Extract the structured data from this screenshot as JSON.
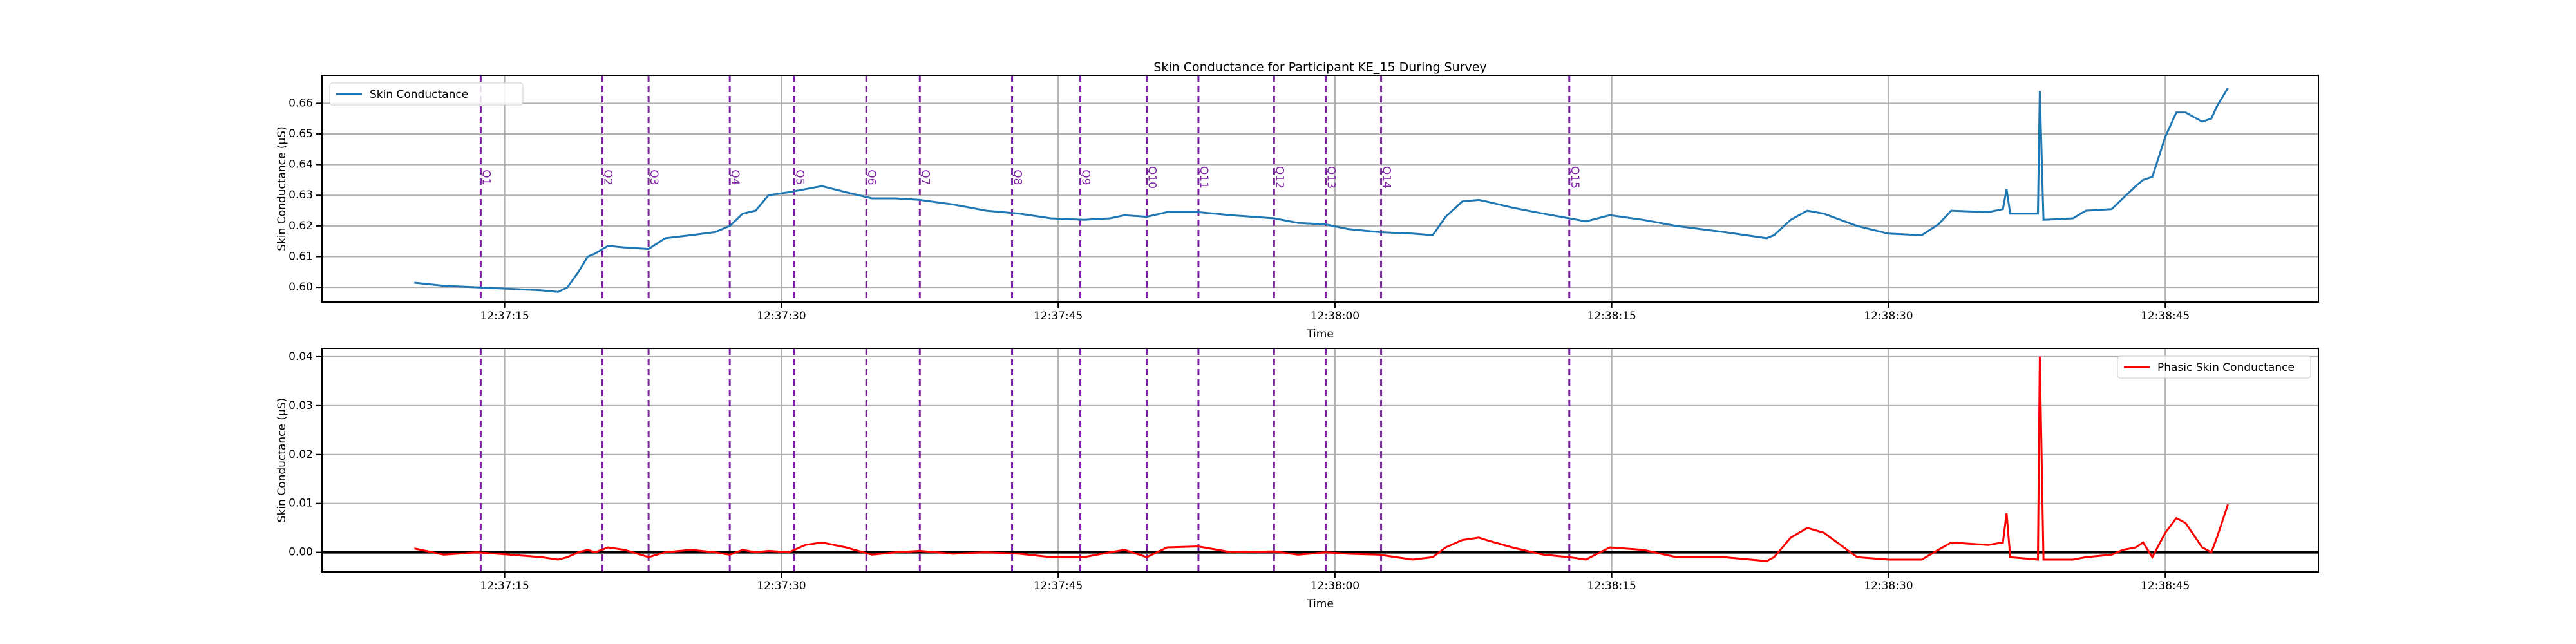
{
  "chart_data": [
    {
      "type": "line",
      "title": "Skin Conductance for Participant KE_15 During Survey",
      "xlabel": "Time",
      "ylabel": "Skin Conductance (μS)",
      "x": [
        45430.1,
        45431.7,
        45433.5,
        45435.3,
        45437.0,
        45437.9,
        45438.4,
        45439.0,
        45439.5,
        45439.9,
        45440.6,
        45441.5,
        45442.8,
        45443.7,
        45445.1,
        45446.4,
        45447.2,
        45447.9,
        45448.6,
        45449.3,
        45450.4,
        45451.3,
        45452.2,
        45453.5,
        45454.9,
        45456.2,
        45457.5,
        45459.3,
        45461.1,
        45462.9,
        45464.6,
        45466.4,
        45467.8,
        45468.6,
        45469.8,
        45470.9,
        45472.6,
        45474.4,
        45476.7,
        45478.0,
        45479.5,
        45480.7,
        45482.4,
        45484.2,
        45485.3,
        45486.0,
        45486.9,
        45487.8,
        45488.2,
        45489.6,
        45491.3,
        45492.7,
        45493.6,
        45494.9,
        45496.7,
        45498.5,
        45501.1,
        45503.4,
        45503.8,
        45504.7,
        45505.6,
        45506.5,
        45508.3,
        45510.0,
        45511.8,
        45512.7,
        45513.4,
        45515.4,
        45516.2,
        45516.4,
        45516.6,
        45518.1,
        45518.2,
        45518.4,
        45520.0,
        45520.7,
        45522.1,
        45522.7,
        45523.4,
        45523.8,
        45524.3,
        45525.0,
        45525.6,
        45526.1,
        45527.0,
        45527.5,
        45527.8,
        45528.4
      ],
      "series": [
        {
          "name": "Skin Conductance",
          "color": "#1f77b4",
          "values": [
            0.6015,
            0.6005,
            0.6,
            0.5995,
            0.599,
            0.5985,
            0.6,
            0.605,
            0.61,
            0.611,
            0.6135,
            0.613,
            0.6125,
            0.616,
            0.617,
            0.618,
            0.62,
            0.624,
            0.625,
            0.63,
            0.631,
            0.632,
            0.633,
            0.631,
            0.629,
            0.629,
            0.6285,
            0.627,
            0.625,
            0.624,
            0.6225,
            0.622,
            0.6225,
            0.6235,
            0.623,
            0.6245,
            0.6245,
            0.6235,
            0.6225,
            0.621,
            0.6205,
            0.619,
            0.618,
            0.6175,
            0.617,
            0.623,
            0.628,
            0.6285,
            0.628,
            0.626,
            0.624,
            0.6225,
            0.6215,
            0.6235,
            0.622,
            0.62,
            0.618,
            0.616,
            0.617,
            0.622,
            0.625,
            0.624,
            0.62,
            0.6175,
            0.617,
            0.6205,
            0.625,
            0.6245,
            0.6255,
            0.632,
            0.624,
            0.624,
            0.664,
            0.622,
            0.6225,
            0.625,
            0.6255,
            0.629,
            0.633,
            0.635,
            0.636,
            0.649,
            0.657,
            0.657,
            0.654,
            0.655,
            0.659,
            0.665
          ]
        }
      ],
      "xlim": [
        45425.1,
        45533.3
      ],
      "ylim": [
        0.5952,
        0.6691
      ],
      "xticks": [
        {
          "value": 45435,
          "label": "12:37:15"
        },
        {
          "value": 45450,
          "label": "12:37:30"
        },
        {
          "value": 45465,
          "label": "12:37:45"
        },
        {
          "value": 45480,
          "label": "12:38:00"
        },
        {
          "value": 45495,
          "label": "12:38:15"
        },
        {
          "value": 45510,
          "label": "12:38:30"
        },
        {
          "value": 45525,
          "label": "12:38:45"
        }
      ],
      "yticks": [
        {
          "value": 0.6,
          "label": "0.60"
        },
        0.61,
        0.62,
        0.63,
        0.64,
        0.65,
        0.66
      ],
      "grid": true,
      "legend": "upper left",
      "marker_color": "#7b1fa2",
      "markers": [
        {
          "x": 45433.7,
          "label": "Q1"
        },
        {
          "x": 45440.3,
          "label": "Q2"
        },
        {
          "x": 45442.8,
          "label": "Q3"
        },
        {
          "x": 45447.2,
          "label": "Q4"
        },
        {
          "x": 45450.7,
          "label": "Q5"
        },
        {
          "x": 45454.6,
          "label": "Q6"
        },
        {
          "x": 45457.5,
          "label": "Q7"
        },
        {
          "x": 45462.5,
          "label": "Q8"
        },
        {
          "x": 45466.2,
          "label": "Q9"
        },
        {
          "x": 45469.8,
          "label": "Q10"
        },
        {
          "x": 45472.6,
          "label": "Q11"
        },
        {
          "x": 45476.7,
          "label": "Q12"
        },
        {
          "x": 45479.5,
          "label": "Q13"
        },
        {
          "x": 45482.5,
          "label": "Q14"
        },
        {
          "x": 45492.7,
          "label": "Q15"
        }
      ]
    },
    {
      "type": "line",
      "xlabel": "Time",
      "ylabel": "Skin Conductance (μS)",
      "x": [
        45430.1,
        45431.7,
        45433.5,
        45435.3,
        45437.0,
        45437.9,
        45438.4,
        45439.0,
        45439.5,
        45439.9,
        45440.6,
        45441.5,
        45442.8,
        45443.7,
        45445.1,
        45446.4,
        45447.2,
        45447.9,
        45448.6,
        45449.3,
        45450.4,
        45451.3,
        45452.2,
        45453.5,
        45454.9,
        45456.2,
        45457.5,
        45459.3,
        45461.1,
        45462.9,
        45464.6,
        45466.4,
        45467.8,
        45468.6,
        45469.8,
        45470.9,
        45472.6,
        45474.4,
        45476.7,
        45478.0,
        45479.5,
        45480.7,
        45482.4,
        45484.2,
        45485.3,
        45486.0,
        45486.9,
        45487.8,
        45488.2,
        45489.6,
        45491.3,
        45492.7,
        45493.6,
        45494.9,
        45496.7,
        45498.5,
        45501.1,
        45503.4,
        45503.8,
        45504.7,
        45505.6,
        45506.5,
        45508.3,
        45510.0,
        45511.8,
        45512.7,
        45513.4,
        45515.4,
        45516.2,
        45516.4,
        45516.6,
        45518.1,
        45518.2,
        45518.4,
        45520.0,
        45520.7,
        45522.1,
        45522.7,
        45523.4,
        45523.8,
        45524.3,
        45525.0,
        45525.6,
        45526.1,
        45527.0,
        45527.5,
        45527.8,
        45528.4
      ],
      "series": [
        {
          "name": "Phasic Skin Conductance",
          "color": "#ff0000",
          "values": [
            0.0008,
            -0.0005,
            0,
            -0.0005,
            -0.001,
            -0.0015,
            -0.001,
            0,
            0.0005,
            0,
            0.001,
            0.0005,
            -0.001,
            0,
            0.0005,
            0,
            -0.0005,
            0.0005,
            0,
            0.0003,
            0,
            0.0015,
            0.002,
            0.001,
            -0.0005,
            0,
            0.0003,
            -0.0003,
            0,
            -0.0003,
            -0.001,
            -0.001,
            0,
            0.0005,
            -0.001,
            0.001,
            0.0012,
            0,
            0.0002,
            -0.0005,
            0,
            -0.0003,
            -0.0005,
            -0.0015,
            -0.001,
            0.001,
            0.0025,
            0.003,
            0.0025,
            0.001,
            -0.0005,
            -0.001,
            -0.0015,
            0.001,
            0.0005,
            -0.001,
            -0.001,
            -0.0018,
            -0.001,
            0.003,
            0.005,
            0.004,
            -0.001,
            -0.0015,
            -0.0015,
            0.0005,
            0.002,
            0.0015,
            0.002,
            0.008,
            -0.001,
            -0.0015,
            0.04,
            -0.0015,
            -0.0015,
            -0.001,
            -0.0005,
            0.0005,
            0.001,
            0.002,
            -0.001,
            0.004,
            0.007,
            0.006,
            0.001,
            0,
            0.003,
            0.0098
          ]
        }
      ],
      "xlim": [
        45425.1,
        45533.3
      ],
      "ylim": [
        -0.004,
        0.0417
      ],
      "xticks": [
        {
          "value": 45435,
          "label": "12:37:15"
        },
        {
          "value": 45450,
          "label": "12:37:30"
        },
        {
          "value": 45465,
          "label": "12:37:45"
        },
        {
          "value": 45480,
          "label": "12:38:00"
        },
        {
          "value": 45495,
          "label": "12:38:15"
        },
        {
          "value": 45510,
          "label": "12:38:30"
        },
        {
          "value": 45525,
          "label": "12:38:45"
        }
      ],
      "yticks": [
        {
          "value": 0,
          "label": "0.00"
        },
        0.01,
        0.02,
        0.03,
        0.04
      ],
      "grid": true,
      "legend": "upper right",
      "hline": 0,
      "hline_color": "#000000",
      "marker_color": "#7b1fa2",
      "markers": [
        45433.7,
        45440.3,
        45442.8,
        45447.2,
        45450.7,
        45454.6,
        45457.5,
        45462.5,
        45466.2,
        45469.8,
        45472.6,
        45476.7,
        45479.5,
        45482.5,
        45492.7
      ]
    }
  ]
}
